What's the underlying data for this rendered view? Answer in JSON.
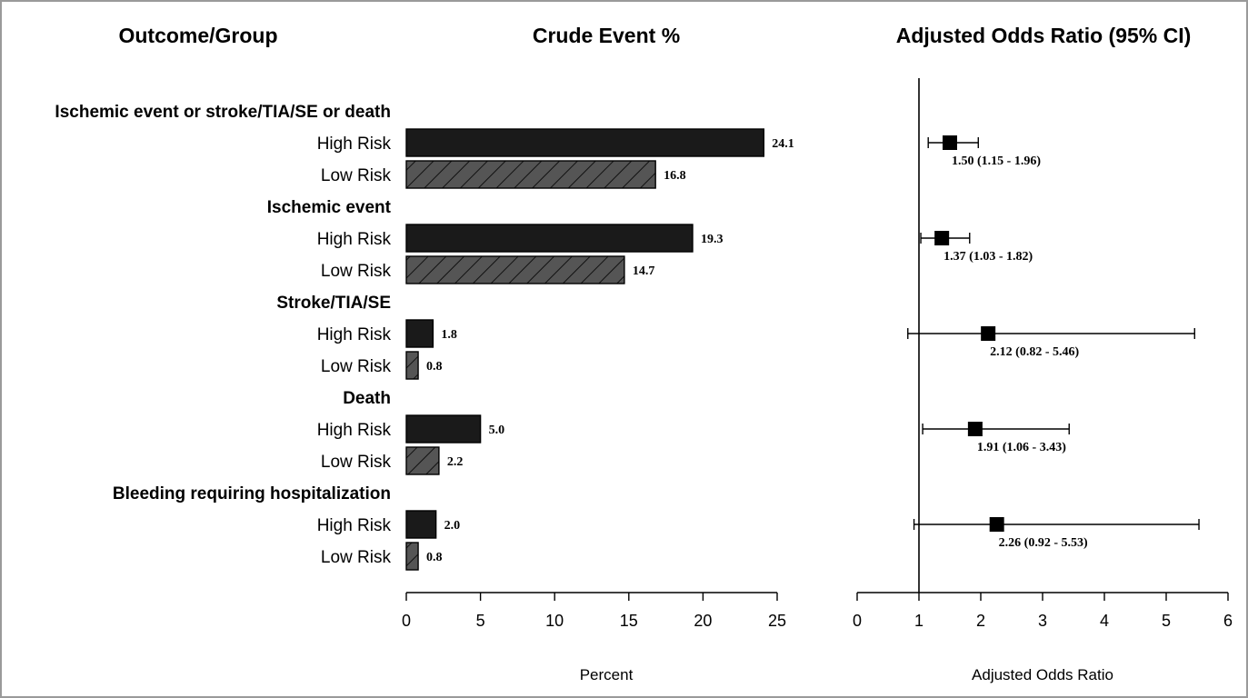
{
  "chart_data": {
    "type": "bar",
    "column_headers": [
      "Outcome/Group",
      "Crude Event %",
      "Adjusted Odds Ratio (95% CI)"
    ],
    "groups": [
      "High Risk",
      "Low Risk"
    ],
    "colors": {
      "High Risk": "#1a1a1a",
      "Low Risk": "#555555"
    },
    "outcomes": [
      {
        "name": "Ischemic event or stroke/TIA/SE or death",
        "rows": [
          {
            "group": "High Risk",
            "percent": 24.1,
            "percent_label": "24.1",
            "or": 1.5,
            "lo": 1.15,
            "hi": 1.96,
            "or_label": "1.50 (1.15 - 1.96)"
          },
          {
            "group": "Low Risk",
            "percent": 16.8,
            "percent_label": "16.8"
          }
        ]
      },
      {
        "name": "Ischemic event",
        "rows": [
          {
            "group": "High Risk",
            "percent": 19.3,
            "percent_label": "19.3",
            "or": 1.37,
            "lo": 1.03,
            "hi": 1.82,
            "or_label": "1.37 (1.03 - 1.82)"
          },
          {
            "group": "Low Risk",
            "percent": 14.7,
            "percent_label": "14.7"
          }
        ]
      },
      {
        "name": "Stroke/TIA/SE",
        "rows": [
          {
            "group": "High Risk",
            "percent": 1.8,
            "percent_label": "1.8",
            "or": 2.12,
            "lo": 0.82,
            "hi": 5.46,
            "or_label": "2.12 (0.82 - 5.46)"
          },
          {
            "group": "Low Risk",
            "percent": 0.8,
            "percent_label": "0.8"
          }
        ]
      },
      {
        "name": "Death",
        "rows": [
          {
            "group": "High Risk",
            "percent": 5.0,
            "percent_label": "5.0",
            "or": 1.91,
            "lo": 1.06,
            "hi": 3.43,
            "or_label": "1.91 (1.06 - 3.43)"
          },
          {
            "group": "Low Risk",
            "percent": 2.2,
            "percent_label": "2.2"
          }
        ]
      },
      {
        "name": "Bleeding requiring hospitalization",
        "rows": [
          {
            "group": "High Risk",
            "percent": 2.0,
            "percent_label": "2.0",
            "or": 2.26,
            "lo": 0.92,
            "hi": 5.53,
            "or_label": "2.26 (0.92 - 5.53)"
          },
          {
            "group": "Low Risk",
            "percent": 0.8,
            "percent_label": "0.8"
          }
        ]
      }
    ],
    "percent_axis": {
      "label": "Percent",
      "range": [
        0,
        25
      ],
      "ticks": [
        0,
        5,
        10,
        15,
        20,
        25
      ]
    },
    "or_axis": {
      "label": "Adjusted Odds Ratio",
      "range": [
        0,
        6
      ],
      "ticks": [
        0,
        1,
        2,
        3,
        4,
        5,
        6
      ],
      "reference_line": 1
    }
  }
}
